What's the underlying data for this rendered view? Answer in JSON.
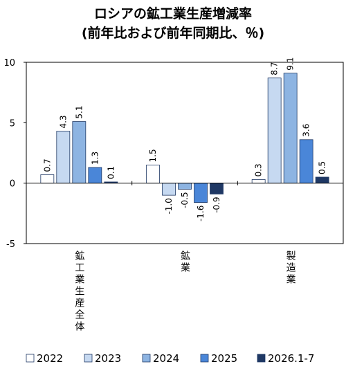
{
  "chart_data": {
    "type": "bar",
    "title": "ロシアの鉱工業生産増減率",
    "subtitle": "(前年比および前年同期比、％)",
    "categories": [
      "鉱工業生産全体",
      "鉱業",
      "製造業"
    ],
    "series": [
      {
        "name": "2022",
        "color": "#ffffff",
        "values": [
          0.7,
          1.5,
          0.3
        ],
        "value_labels": [
          "0.7",
          "1.5",
          "0.3"
        ]
      },
      {
        "name": "2023",
        "color": "#c6d9f1",
        "values": [
          4.3,
          -1.0,
          8.7
        ],
        "value_labels": [
          "4.3",
          "-1.0",
          "8.7"
        ]
      },
      {
        "name": "2024",
        "color": "#8db4e2",
        "values": [
          5.1,
          -0.5,
          9.1
        ],
        "value_labels": [
          "5.1",
          "-0.5",
          "9.1"
        ]
      },
      {
        "name": "2025",
        "color": "#4a86d8",
        "values": [
          1.3,
          -1.6,
          3.6
        ],
        "value_labels": [
          "1.3",
          "-1.6",
          "3.6"
        ]
      },
      {
        "name": "2026.1-7",
        "color": "#1f3864",
        "values": [
          0.1,
          -0.9,
          0.5
        ],
        "value_labels": [
          "0.1",
          "-0.9",
          "0.5"
        ]
      }
    ],
    "ylim": [
      -5,
      10
    ],
    "yticks": [
      -5,
      0,
      5,
      10
    ],
    "grid": false,
    "legend": "bottom"
  }
}
